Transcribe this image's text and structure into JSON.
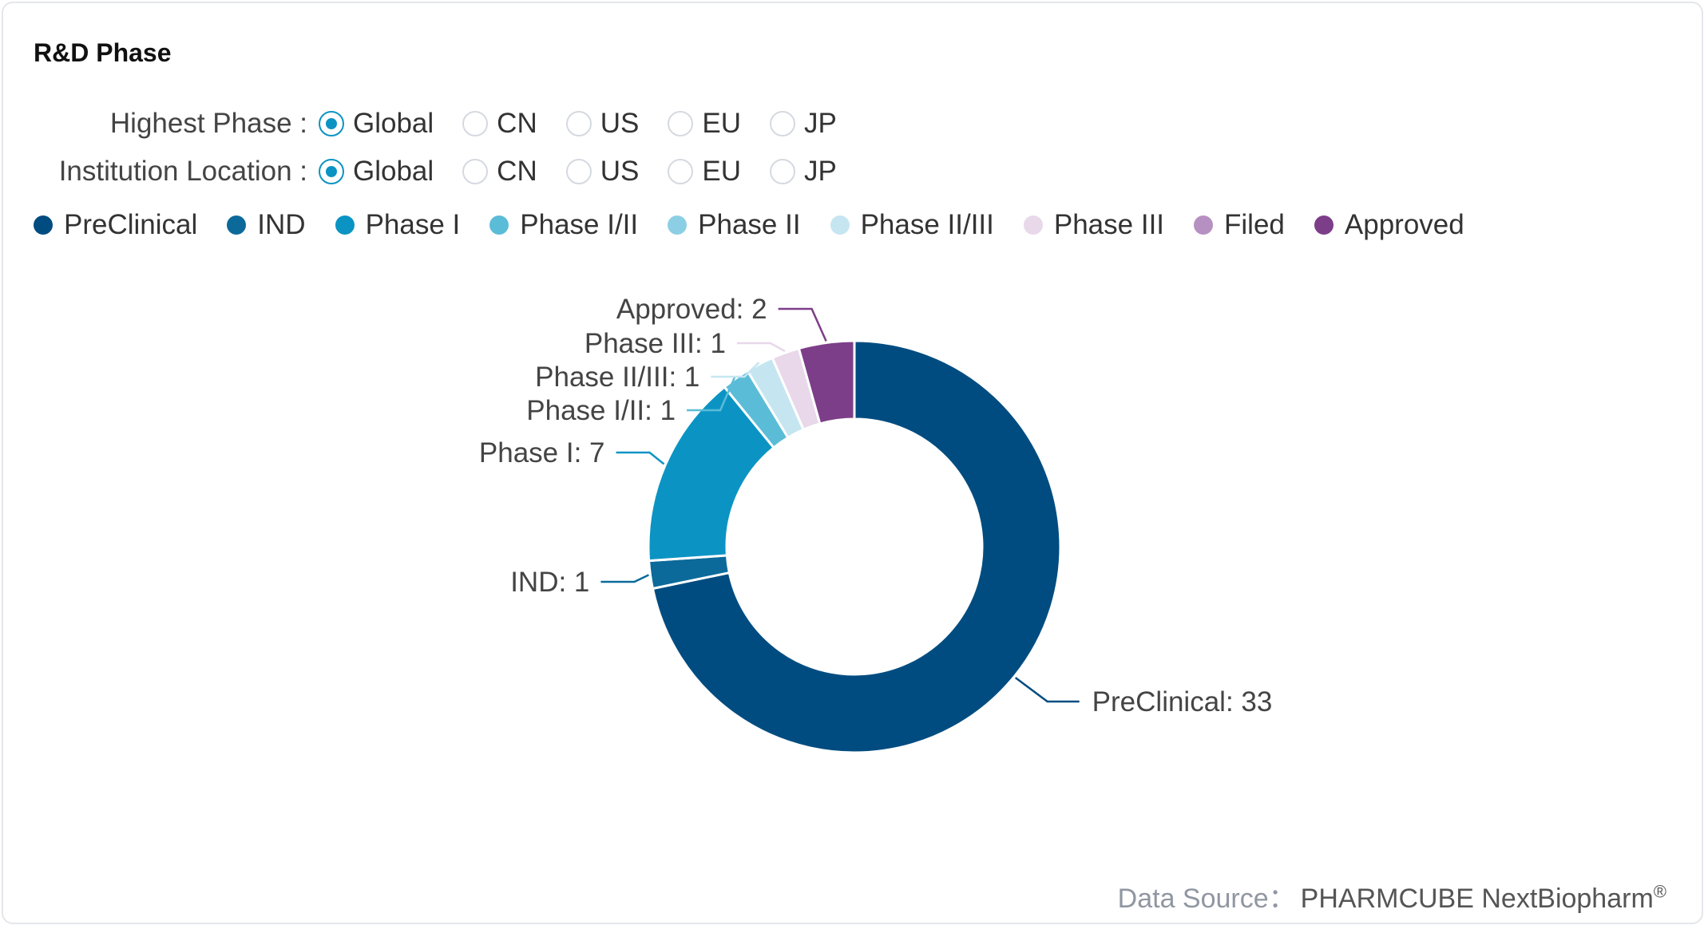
{
  "card": {
    "title": "R&D Phase"
  },
  "filters": [
    {
      "label": "Highest Phase :",
      "options": [
        "Global",
        "CN",
        "US",
        "EU",
        "JP"
      ],
      "selected": "Global"
    },
    {
      "label": "Institution Location :",
      "options": [
        "Global",
        "CN",
        "US",
        "EU",
        "JP"
      ],
      "selected": "Global"
    }
  ],
  "legend": [
    {
      "name": "PreClinical",
      "color": "#004c80"
    },
    {
      "name": "IND",
      "color": "#0b6a9a"
    },
    {
      "name": "Phase I",
      "color": "#0b94c3"
    },
    {
      "name": "Phase I/II",
      "color": "#5bbcd8"
    },
    {
      "name": "Phase II",
      "color": "#8ccfe4"
    },
    {
      "name": "Phase II/III",
      "color": "#c5e6f1"
    },
    {
      "name": "Phase III",
      "color": "#e8d8ea"
    },
    {
      "name": "Filed",
      "color": "#b790c2"
    },
    {
      "name": "Approved",
      "color": "#7d3e89"
    }
  ],
  "chart_data": {
    "type": "pie",
    "variant": "donut",
    "categories": [
      "PreClinical",
      "IND",
      "Phase I",
      "Phase I/II",
      "Phase II/III",
      "Phase III",
      "Approved"
    ],
    "values": [
      33,
      1,
      7,
      1,
      1,
      1,
      2
    ],
    "colors": [
      "#004c80",
      "#0b6a9a",
      "#0b94c3",
      "#5bbcd8",
      "#c5e6f1",
      "#e8d8ea",
      "#7d3e89"
    ],
    "labels": [
      "PreClinical: 33",
      "IND: 1",
      "Phase I: 7",
      "Phase I/II: 1",
      "Phase II/III: 1",
      "Phase III: 1",
      "Approved: 2"
    ],
    "direction": "clockwise",
    "start_angle": "top"
  },
  "footer": {
    "source_label": "Data Source：",
    "source_value": "PHARMCUBE NextBiopharm",
    "source_mark": "®"
  }
}
